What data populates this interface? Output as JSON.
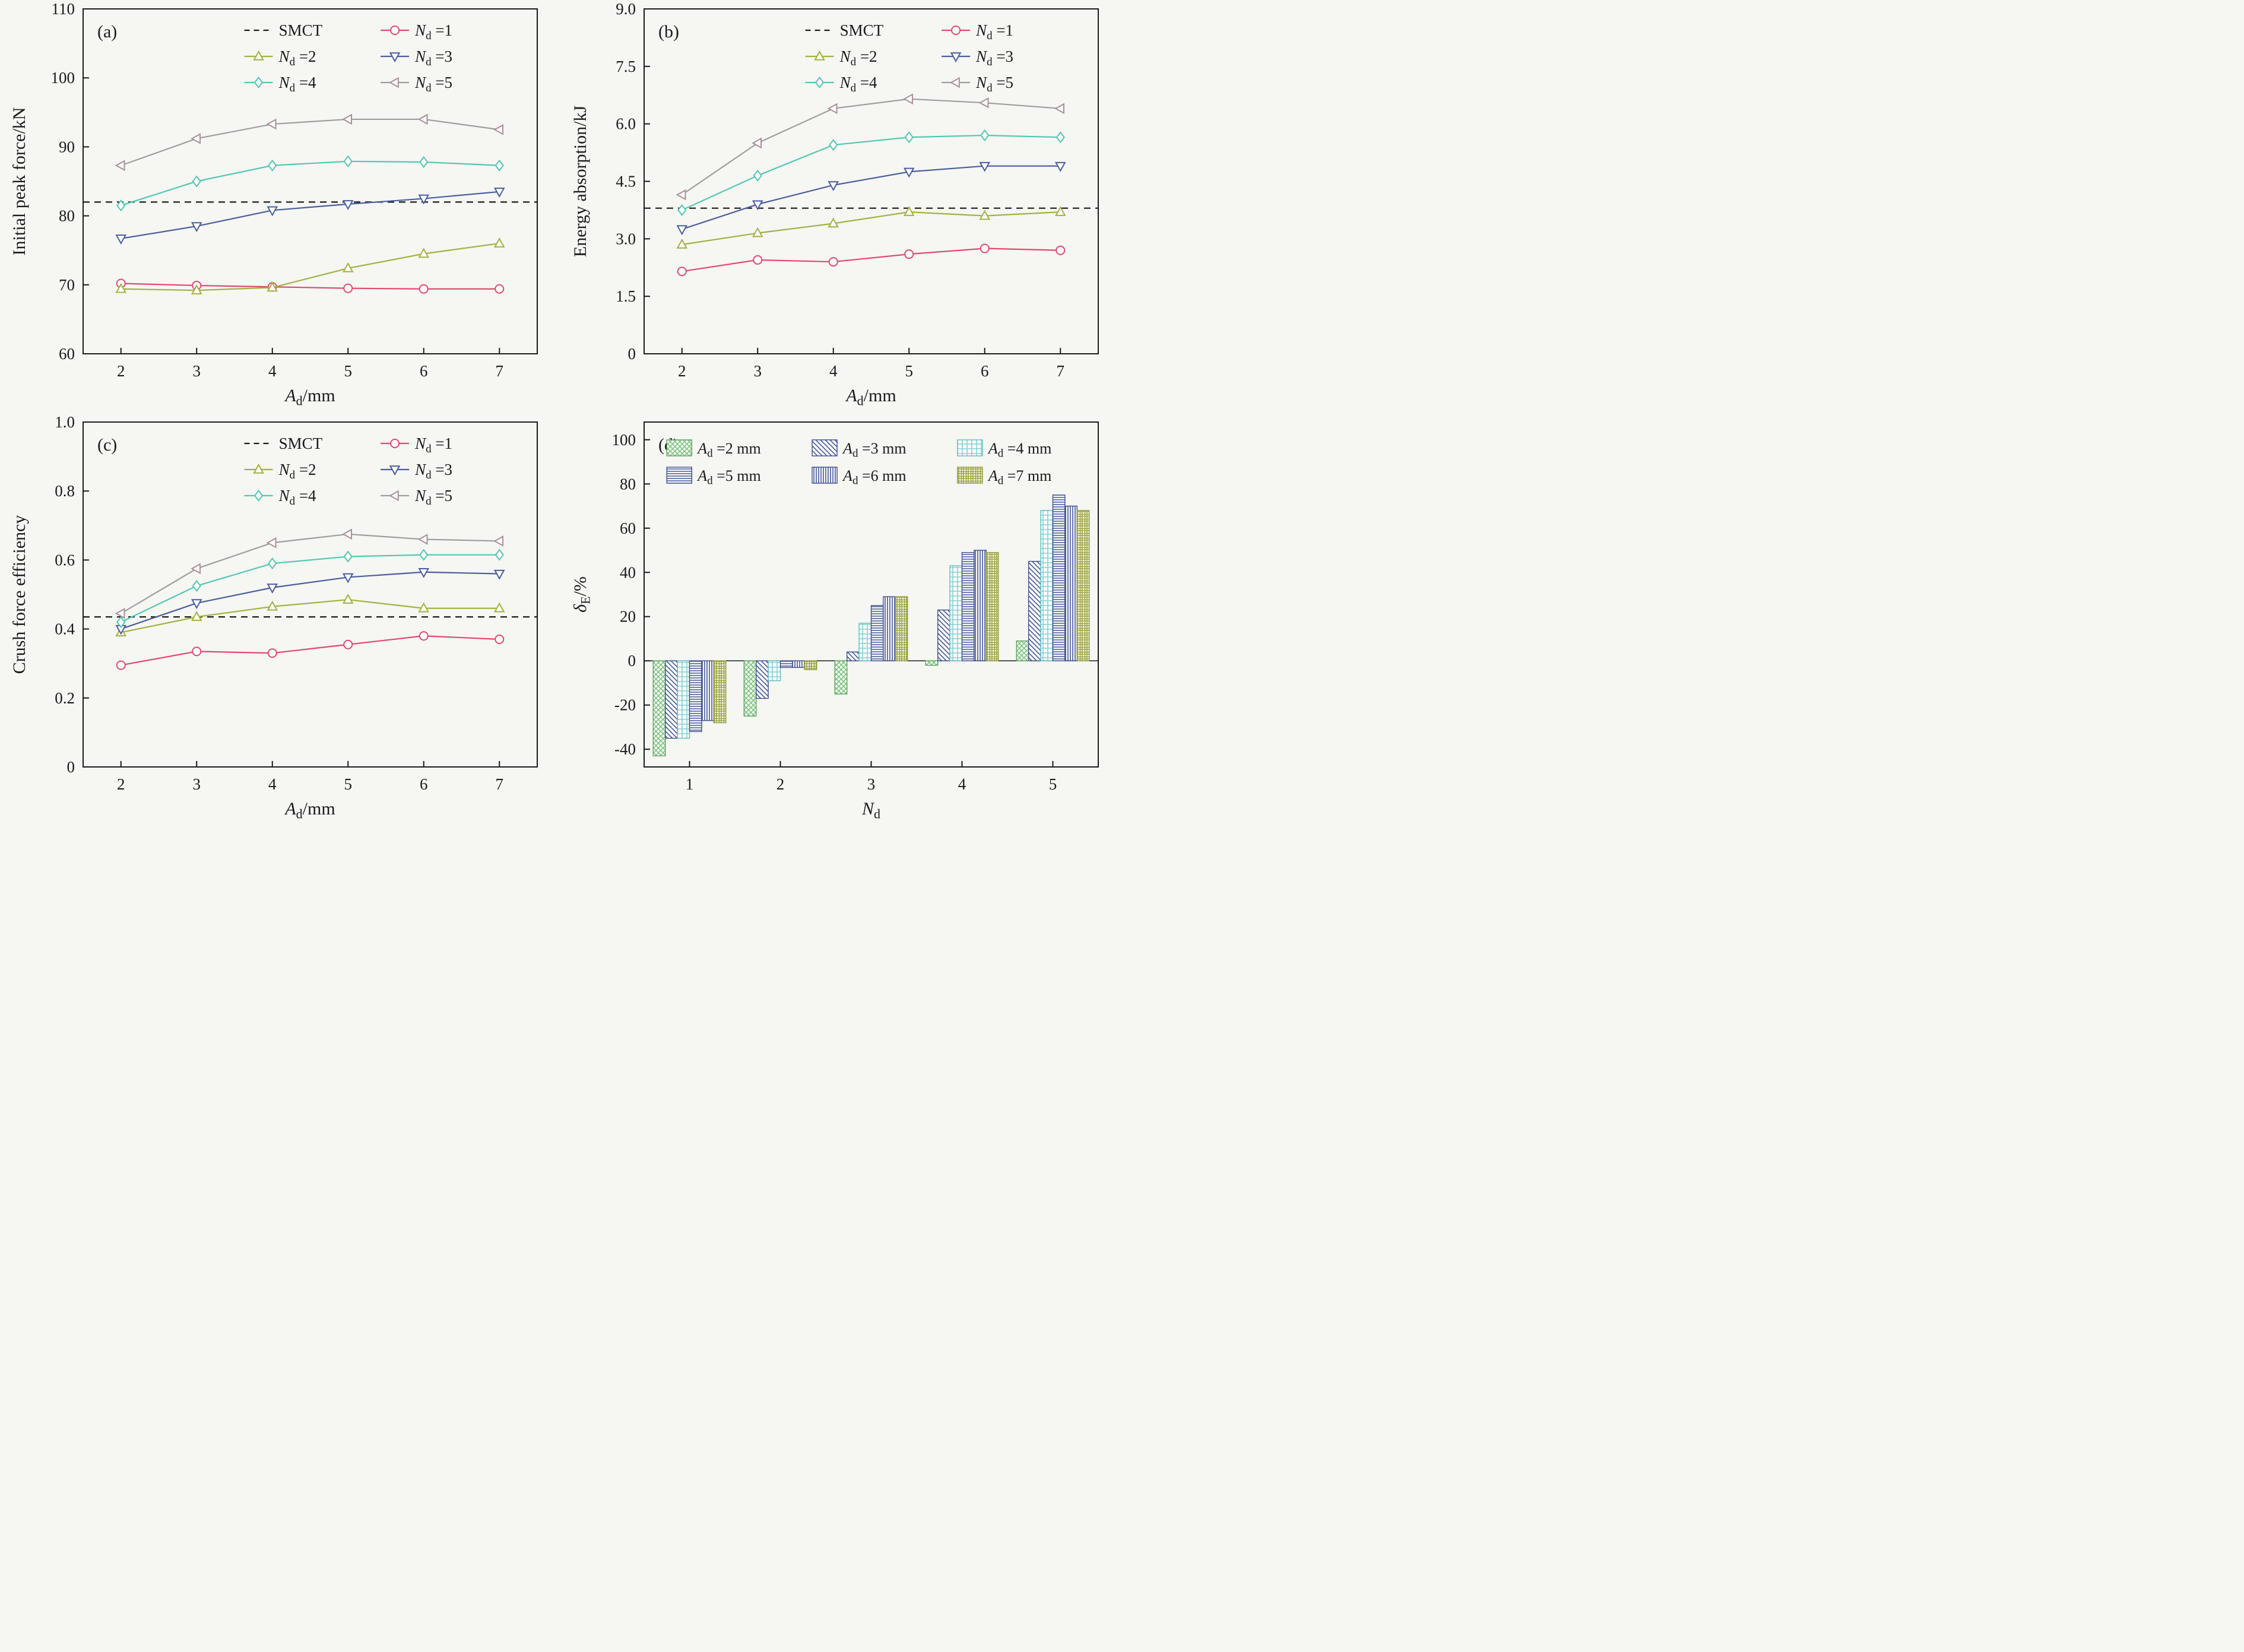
{
  "figure": {
    "background": "#f6f6f3",
    "text_color": "#1a1a1a",
    "frame_color": "#1a1a1a"
  },
  "chart_data": [
    {
      "id": "a",
      "type": "line",
      "panel_label": "(a)",
      "xlabel": "A_d/mm",
      "ylabel": "Initial peak force/kN",
      "x": [
        2,
        3,
        4,
        5,
        6,
        7
      ],
      "xtick_labels": [
        "2",
        "3",
        "4",
        "5",
        "6",
        "7"
      ],
      "ylim": [
        60,
        110
      ],
      "yticks": [
        60,
        70,
        80,
        90,
        100,
        110
      ],
      "ytick_labels": [
        "60",
        "70",
        "80",
        "90",
        "100",
        "110"
      ],
      "smct_label": "SMCT",
      "smct": 82,
      "legend_position": "top-right-inside",
      "series": [
        {
          "key": "nd1",
          "label": "N_d =1",
          "marker": "circle",
          "line": "#e1486f",
          "values": [
            70.2,
            69.9,
            69.7,
            69.5,
            69.4,
            69.4
          ]
        },
        {
          "key": "nd2",
          "label": "N_d =2",
          "marker": "triangle-up",
          "line": "#a3b13f",
          "values": [
            69.4,
            69.2,
            69.6,
            72.4,
            74.5,
            76.0
          ]
        },
        {
          "key": "nd3",
          "label": "N_d =3",
          "marker": "triangle-down",
          "line": "#4a5d9e",
          "values": [
            76.7,
            78.5,
            80.8,
            81.7,
            82.5,
            83.5
          ]
        },
        {
          "key": "nd4",
          "label": "N_d =4",
          "marker": "diamond",
          "line": "#4fc9b0",
          "values": [
            81.5,
            85.0,
            87.3,
            87.9,
            87.8,
            87.3
          ]
        },
        {
          "key": "nd5",
          "label": "N_d =5",
          "marker": "triangle-left",
          "line": "#9e9e9e",
          "marker_color": "#a8919a",
          "values": [
            87.3,
            91.2,
            93.3,
            94.0,
            94.0,
            92.5
          ]
        }
      ]
    },
    {
      "id": "b",
      "type": "line",
      "panel_label": "(b)",
      "xlabel": "A_d/mm",
      "ylabel": "Energy absorption/kJ",
      "x": [
        2,
        3,
        4,
        5,
        6,
        7
      ],
      "xtick_labels": [
        "2",
        "3",
        "4",
        "5",
        "6",
        "7"
      ],
      "ylim": [
        0,
        9
      ],
      "yticks": [
        0,
        1.5,
        3.0,
        4.5,
        6.0,
        7.5,
        9.0
      ],
      "ytick_labels": [
        "0",
        "1.5",
        "3.0",
        "4.5",
        "6.0",
        "7.5",
        "9.0"
      ],
      "smct_label": "SMCT",
      "smct": 3.8,
      "legend_position": "top-right-inside",
      "series": [
        {
          "key": "nd1",
          "label": "N_d =1",
          "marker": "circle",
          "line": "#e1486f",
          "values": [
            2.15,
            2.45,
            2.4,
            2.6,
            2.75,
            2.7
          ]
        },
        {
          "key": "nd2",
          "label": "N_d =2",
          "marker": "triangle-up",
          "line": "#a3b13f",
          "values": [
            2.85,
            3.15,
            3.4,
            3.7,
            3.6,
            3.7
          ]
        },
        {
          "key": "nd3",
          "label": "N_d =3",
          "marker": "triangle-down",
          "line": "#4a5d9e",
          "values": [
            3.25,
            3.9,
            4.4,
            4.75,
            4.9,
            4.9
          ]
        },
        {
          "key": "nd4",
          "label": "N_d =4",
          "marker": "diamond",
          "line": "#4fc9b0",
          "values": [
            3.75,
            4.65,
            5.45,
            5.65,
            5.7,
            5.65
          ]
        },
        {
          "key": "nd5",
          "label": "N_d =5",
          "marker": "triangle-left",
          "line": "#9e9e9e",
          "marker_color": "#a8919a",
          "values": [
            4.15,
            5.5,
            6.4,
            6.65,
            6.55,
            6.4
          ]
        }
      ]
    },
    {
      "id": "c",
      "type": "line",
      "panel_label": "(c)",
      "xlabel": "A_d/mm",
      "ylabel": "Crush force efficiency",
      "x": [
        2,
        3,
        4,
        5,
        6,
        7
      ],
      "xtick_labels": [
        "2",
        "3",
        "4",
        "5",
        "6",
        "7"
      ],
      "ylim": [
        0,
        1.0
      ],
      "yticks": [
        0,
        0.2,
        0.4,
        0.6,
        0.8,
        1.0
      ],
      "ytick_labels": [
        "0",
        "0.2",
        "0.4",
        "0.6",
        "0.8",
        "1.0"
      ],
      "smct_label": "SMCT",
      "smct": 0.435,
      "legend_position": "top-right-inside",
      "series": [
        {
          "key": "nd1",
          "label": "N_d =1",
          "marker": "circle",
          "line": "#e1486f",
          "values": [
            0.295,
            0.335,
            0.33,
            0.355,
            0.38,
            0.37
          ]
        },
        {
          "key": "nd2",
          "label": "N_d =2",
          "marker": "triangle-up",
          "line": "#a3b13f",
          "values": [
            0.39,
            0.435,
            0.465,
            0.485,
            0.46,
            0.46
          ]
        },
        {
          "key": "nd3",
          "label": "N_d =3",
          "marker": "triangle-down",
          "line": "#4a5d9e",
          "values": [
            0.4,
            0.475,
            0.52,
            0.55,
            0.565,
            0.56
          ]
        },
        {
          "key": "nd4",
          "label": "N_d =4",
          "marker": "diamond",
          "line": "#4fc9b0",
          "values": [
            0.42,
            0.525,
            0.59,
            0.61,
            0.615,
            0.615
          ]
        },
        {
          "key": "nd5",
          "label": "N_d =5",
          "marker": "triangle-left",
          "line": "#9e9e9e",
          "marker_color": "#a8919a",
          "values": [
            0.445,
            0.575,
            0.65,
            0.675,
            0.66,
            0.655
          ]
        }
      ]
    },
    {
      "id": "d",
      "type": "bar",
      "panel_label": "(d)",
      "xlabel": "N_d",
      "ylabel": "δ_E/%",
      "categories": [
        1,
        2,
        3,
        4,
        5
      ],
      "xtick_labels": [
        "1",
        "2",
        "3",
        "4",
        "5"
      ],
      "ylim": [
        -48,
        108
      ],
      "yticks": [
        -40,
        -20,
        0,
        20,
        40,
        60,
        80,
        100
      ],
      "ytick_labels": [
        "-40",
        "-20",
        "0",
        "20",
        "40",
        "60",
        "80",
        "100"
      ],
      "legend_position": "top-inside",
      "series": [
        {
          "key": "ad2",
          "label": "A_d =2 mm",
          "pattern": "crosshatch",
          "color": "#7cc47e",
          "edge": "#5aa35d",
          "values": [
            -43,
            -25,
            -15,
            -2,
            9
          ]
        },
        {
          "key": "ad3",
          "label": "A_d =3 mm",
          "pattern": "diag",
          "color": "#44569b",
          "edge": "#3c4e8f",
          "values": [
            -35,
            -17,
            4,
            23,
            45
          ]
        },
        {
          "key": "ad4",
          "label": "A_d =4 mm",
          "pattern": "grid",
          "color": "#83d2d4",
          "edge": "#5fbdc0",
          "values": [
            -35,
            -9,
            17,
            43,
            68
          ]
        },
        {
          "key": "ad5",
          "label": "A_d =5 mm",
          "pattern": "horiz",
          "color": "#44569b",
          "edge": "#3c4e8f",
          "values": [
            -32,
            -3,
            25,
            49,
            75
          ]
        },
        {
          "key": "ad6",
          "label": "A_d =6 mm",
          "pattern": "vert",
          "color": "#44569b",
          "edge": "#3c4e8f",
          "values": [
            -27,
            -3,
            29,
            50,
            70
          ]
        },
        {
          "key": "ad7",
          "label": "A_d =7 mm",
          "pattern": "gridolive",
          "color": "#9aa43f",
          "edge": "#8f9a3a",
          "values": [
            -28,
            -4,
            29,
            49,
            68
          ]
        }
      ]
    }
  ]
}
